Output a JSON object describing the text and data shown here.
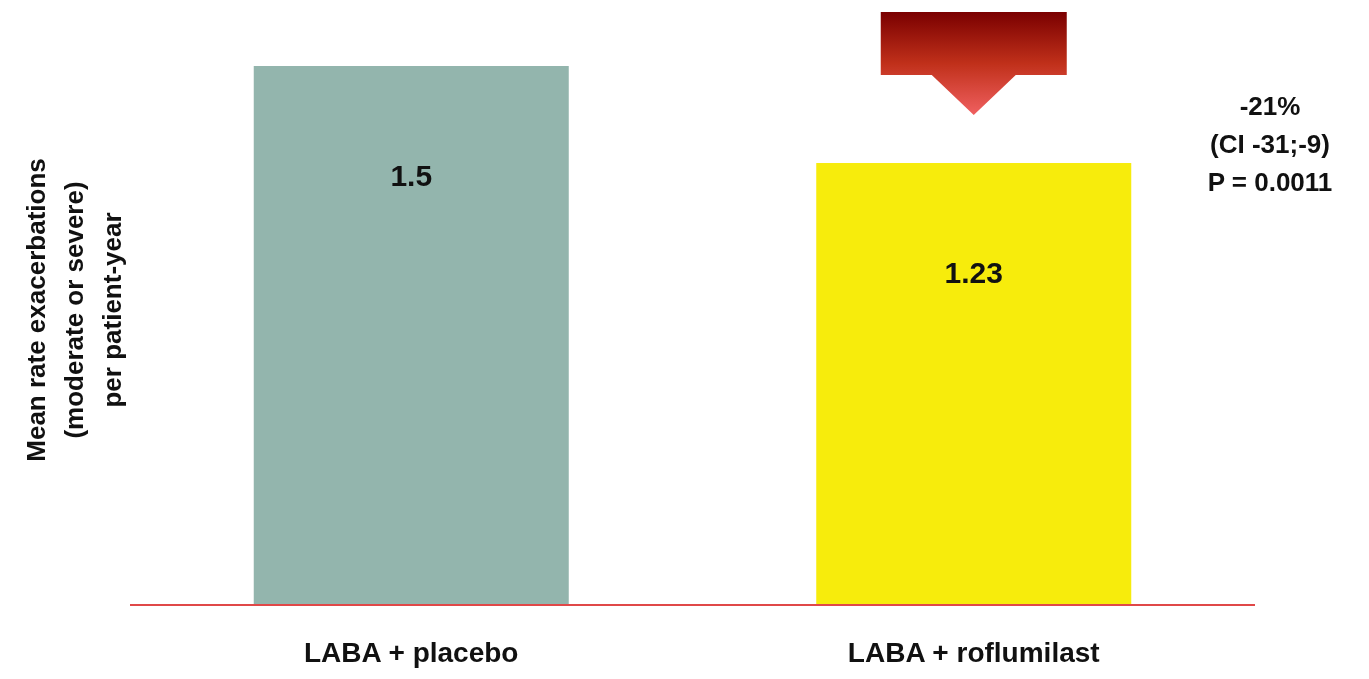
{
  "chart_data": {
    "type": "bar",
    "ylabel": "Mean rate exacerbations\n(moderate or severe)\nper patient-year",
    "categories": [
      "LABA + placebo",
      "LABA + roflumilast"
    ],
    "values": [
      1.5,
      1.23
    ],
    "colors": [
      "#93b5ad",
      "#f7ec0c"
    ],
    "data_labels": true,
    "annotations": [
      "-21%\n(CI -31;-9)\nP = 0.0011"
    ]
  }
}
